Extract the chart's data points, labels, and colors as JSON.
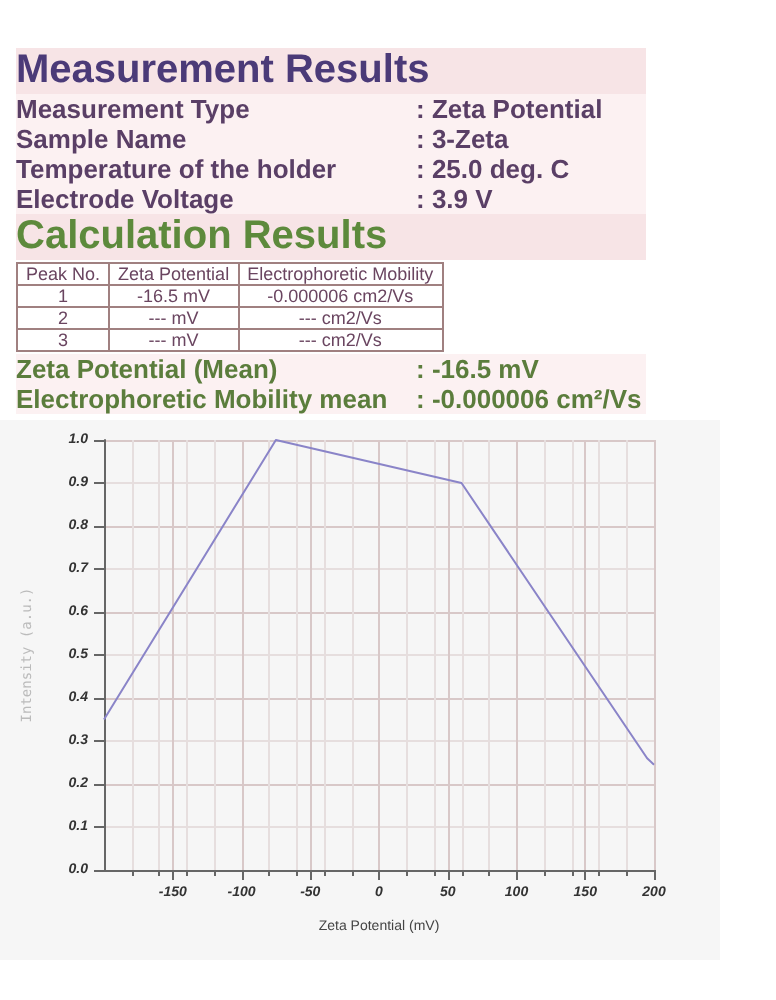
{
  "chart_data": {
    "type": "line",
    "title": "Measurement Results",
    "subtitle": "Calculation Results",
    "annotations": [
      "Measurement Type",
      ": Zeta Potential",
      "Sample Name",
      ": 3-Zeta",
      "Temperature of the holder",
      ": 25.0 deg. C",
      "Electrode Voltage",
      ": 3.9 V",
      "Peak No.",
      "Zeta Potential",
      "Electrophoretic Mobility",
      "1",
      "-16.5 mV",
      "-0.000006 cm2/Vs",
      "2",
      "--- mV",
      "--- cm2/Vs",
      "3",
      "--- mV",
      "--- cm2/Vs",
      "Zeta Potential (Mean)",
      ": -16.5 mV",
      "Electrophoretic Mobility mean",
      ": -0.000006 cm²/Vs"
    ],
    "xlabel": "Zeta Potential (mV)",
    "ylabel": "Intensity (a.u.)",
    "x": [
      -200,
      -75,
      60,
      195,
      200
    ],
    "series": [
      {
        "color": "#8a84c8",
        "values": [
          0.35,
          1.0,
          0.9,
          0.26,
          0.245
        ]
      }
    ],
    "xlim": [
      -200,
      200
    ],
    "xticks": [
      -150,
      -100,
      -50,
      0,
      50,
      100,
      150,
      200
    ],
    "ylim": [
      0,
      1
    ],
    "yticks": [
      {
        "value": 0,
        "label": "0.0"
      },
      {
        "value": 0.1,
        "label": "0.1"
      },
      {
        "value": 0.2,
        "label": "0.2"
      },
      {
        "value": 0.3,
        "label": "0.3"
      },
      {
        "value": 0.4,
        "label": "0.4"
      },
      {
        "value": 0.5,
        "label": "0.5"
      },
      {
        "value": 0.6,
        "label": "0.6"
      },
      {
        "value": 0.7,
        "label": "0.7"
      },
      {
        "value": 0.8,
        "label": "0.8"
      },
      {
        "value": 0.9,
        "label": "0.9"
      },
      {
        "value": 1,
        "label": "1.0"
      }
    ],
    "grid": true,
    "marker": "none",
    "line_style": "solid"
  }
}
